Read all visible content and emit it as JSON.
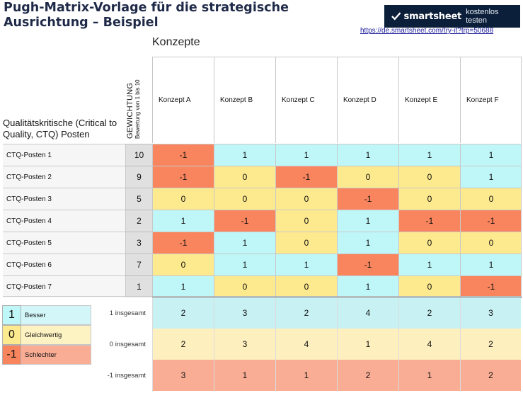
{
  "title": "Pugh-Matrix-Vorlage für die strategische Ausrichtung – Beispiel",
  "banner": {
    "brand": "smartsheet",
    "cta": "kostenlos testen"
  },
  "link_text": "https://de.smartsheet.com/try-it?trp=50688",
  "konzepte_label": "Konzepte",
  "ctq_header": "Qualitätskritische (Critical to Quality, CTQ) Posten",
  "weight_header": {
    "line1": "GEWICHTUNG",
    "line2": "Bewertung von 1 bis 10"
  },
  "colors": {
    "better": "#bff6f8",
    "equal": "#fde98e",
    "worse": "#f9855e"
  },
  "concepts": [
    "Konzept A",
    "Konzept B",
    "Konzept C",
    "Konzept D",
    "Konzept E",
    "Konzept F"
  ],
  "rows": [
    {
      "label": "CTQ-Posten 1",
      "weight": "10",
      "scores": [
        "-1",
        "1",
        "1",
        "1",
        "1",
        "1"
      ]
    },
    {
      "label": "CTQ-Posten 2",
      "weight": "9",
      "scores": [
        "-1",
        "0",
        "-1",
        "0",
        "0",
        "1"
      ]
    },
    {
      "label": "CTQ-Posten 3",
      "weight": "5",
      "scores": [
        "0",
        "0",
        "0",
        "-1",
        "0",
        "0"
      ]
    },
    {
      "label": "CTQ-Posten 4",
      "weight": "2",
      "scores": [
        "1",
        "-1",
        "0",
        "1",
        "-1",
        "-1"
      ]
    },
    {
      "label": "CTQ-Posten 5",
      "weight": "3",
      "scores": [
        "-1",
        "1",
        "0",
        "1",
        "0",
        "0"
      ]
    },
    {
      "label": "CTQ-Posten 6",
      "weight": "7",
      "scores": [
        "0",
        "1",
        "1",
        "-1",
        "1",
        "1"
      ]
    },
    {
      "label": "CTQ-Posten 7",
      "weight": "1",
      "scores": [
        "1",
        "0",
        "0",
        "1",
        "0",
        "-1"
      ]
    }
  ],
  "summary": [
    {
      "label": "1 insgesamt",
      "values": [
        "2",
        "3",
        "2",
        "4",
        "2",
        "3"
      ],
      "color": "#c8f1f3"
    },
    {
      "label": "0 insgesamt",
      "values": [
        "2",
        "3",
        "4",
        "1",
        "4",
        "2"
      ],
      "color": "#fdefbe"
    },
    {
      "label": "-1 insgesamt",
      "values": [
        "3",
        "1",
        "1",
        "2",
        "1",
        "2"
      ],
      "color": "#f9ad95"
    }
  ],
  "legend": [
    {
      "symbol": "1",
      "label": "Besser",
      "sym_color": "#bff6f8",
      "text_color": "#d3f7f9"
    },
    {
      "symbol": "0",
      "label": "Gleichwertig",
      "sym_color": "#fde98e",
      "text_color": "#fdf2c2"
    },
    {
      "symbol": "-1",
      "label": "Schlechter",
      "sym_color": "#f9855e",
      "text_color": "#f9ad95"
    }
  ]
}
